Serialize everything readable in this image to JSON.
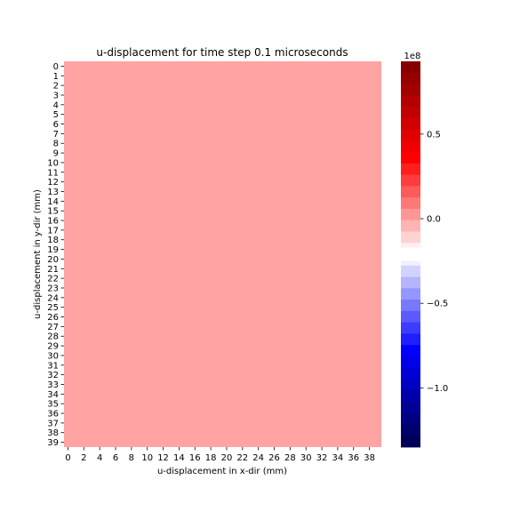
{
  "chart_data": {
    "type": "heatmap",
    "title": "u-displacement for time step 0.1 microseconds",
    "xlabel": "u-displacement in x-dir (mm)",
    "ylabel": "u-displacement in y-dir (mm)",
    "rows": 40,
    "cols": 40,
    "x_tick_labels": [
      "0",
      "2",
      "4",
      "6",
      "8",
      "10",
      "12",
      "14",
      "16",
      "18",
      "20",
      "22",
      "24",
      "26",
      "28",
      "30",
      "32",
      "34",
      "36",
      "38"
    ],
    "y_tick_labels": [
      "0",
      "1",
      "2",
      "3",
      "4",
      "5",
      "6",
      "7",
      "8",
      "9",
      "10",
      "11",
      "12",
      "13",
      "14",
      "15",
      "16",
      "17",
      "18",
      "19",
      "20",
      "21",
      "22",
      "23",
      "24",
      "25",
      "26",
      "27",
      "28",
      "29",
      "30",
      "31",
      "32",
      "33",
      "34",
      "35",
      "36",
      "37",
      "38",
      "39"
    ],
    "cell_value": 0,
    "cell_color": "#ffa3a3",
    "colorbar": {
      "cmap": "seismic",
      "vmin": -1.35,
      "vmax": 0.93,
      "exponent_label": "1e8",
      "ticks": [
        0.5,
        0.0,
        -0.5,
        -1.0
      ],
      "tick_labels": [
        "0.5",
        "0.0",
        "−0.5",
        "−1.0"
      ],
      "gap_range": [
        -0.17,
        -0.25
      ]
    }
  }
}
